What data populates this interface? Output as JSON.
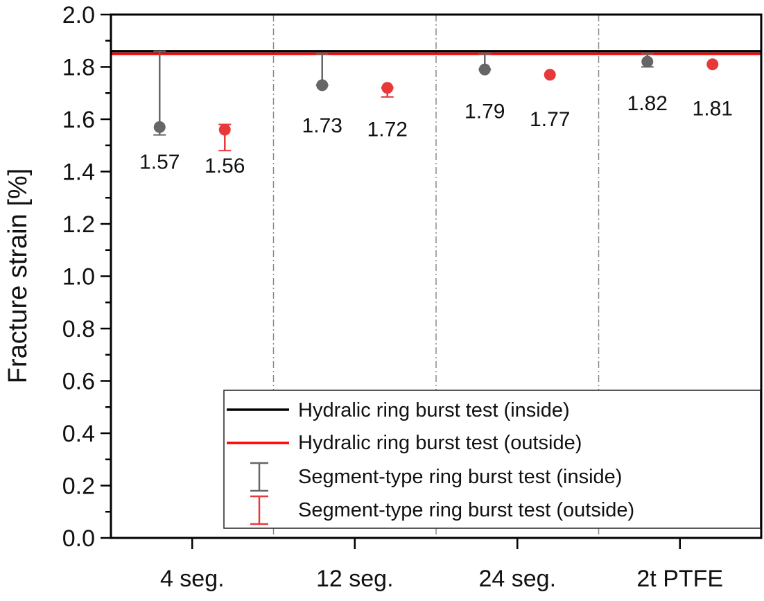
{
  "chart_data": {
    "type": "scatter",
    "title": "",
    "xlabel": "",
    "ylabel": "Fracture strain [%]",
    "ylim": [
      0.0,
      2.0
    ],
    "y_major_ticks": [
      "0.0",
      "0.2",
      "0.4",
      "0.6",
      "0.8",
      "1.0",
      "1.2",
      "1.4",
      "1.6",
      "1.8",
      "2.0"
    ],
    "y_minor_step": 0.1,
    "categories": [
      "4 seg.",
      "12 seg.",
      "24 seg.",
      "2t PTFE"
    ],
    "reference_lines": [
      {
        "name": "Hydralic ring burst test (inside)",
        "value": 1.86,
        "color": "#000000"
      },
      {
        "name": "Hydralic ring burst test (outside)",
        "value": 1.85,
        "color": "#ff0000"
      }
    ],
    "series": [
      {
        "name": "Segment-type ring burst test (inside)",
        "color": "#666666",
        "values": [
          1.57,
          1.73,
          1.79,
          1.82
        ],
        "labels": [
          "1.57",
          "1.73",
          "1.79",
          "1.82"
        ],
        "err_low": [
          1.54,
          1.73,
          1.79,
          1.8
        ],
        "err_high": [
          1.86,
          1.85,
          1.85,
          1.85
        ]
      },
      {
        "name": "Segment-type ring burst test (outside)",
        "color": "#e8393a",
        "values": [
          1.56,
          1.72,
          1.77,
          1.81
        ],
        "labels": [
          "1.56",
          "1.72",
          "1.77",
          "1.81"
        ],
        "err_low": [
          1.48,
          1.685,
          1.77,
          1.81
        ],
        "err_high": [
          1.58,
          1.72,
          1.77,
          1.81
        ]
      }
    ],
    "category_separators": "dash-dot vertical lines between groups",
    "grid": false,
    "legend_position": "bottom-right"
  }
}
